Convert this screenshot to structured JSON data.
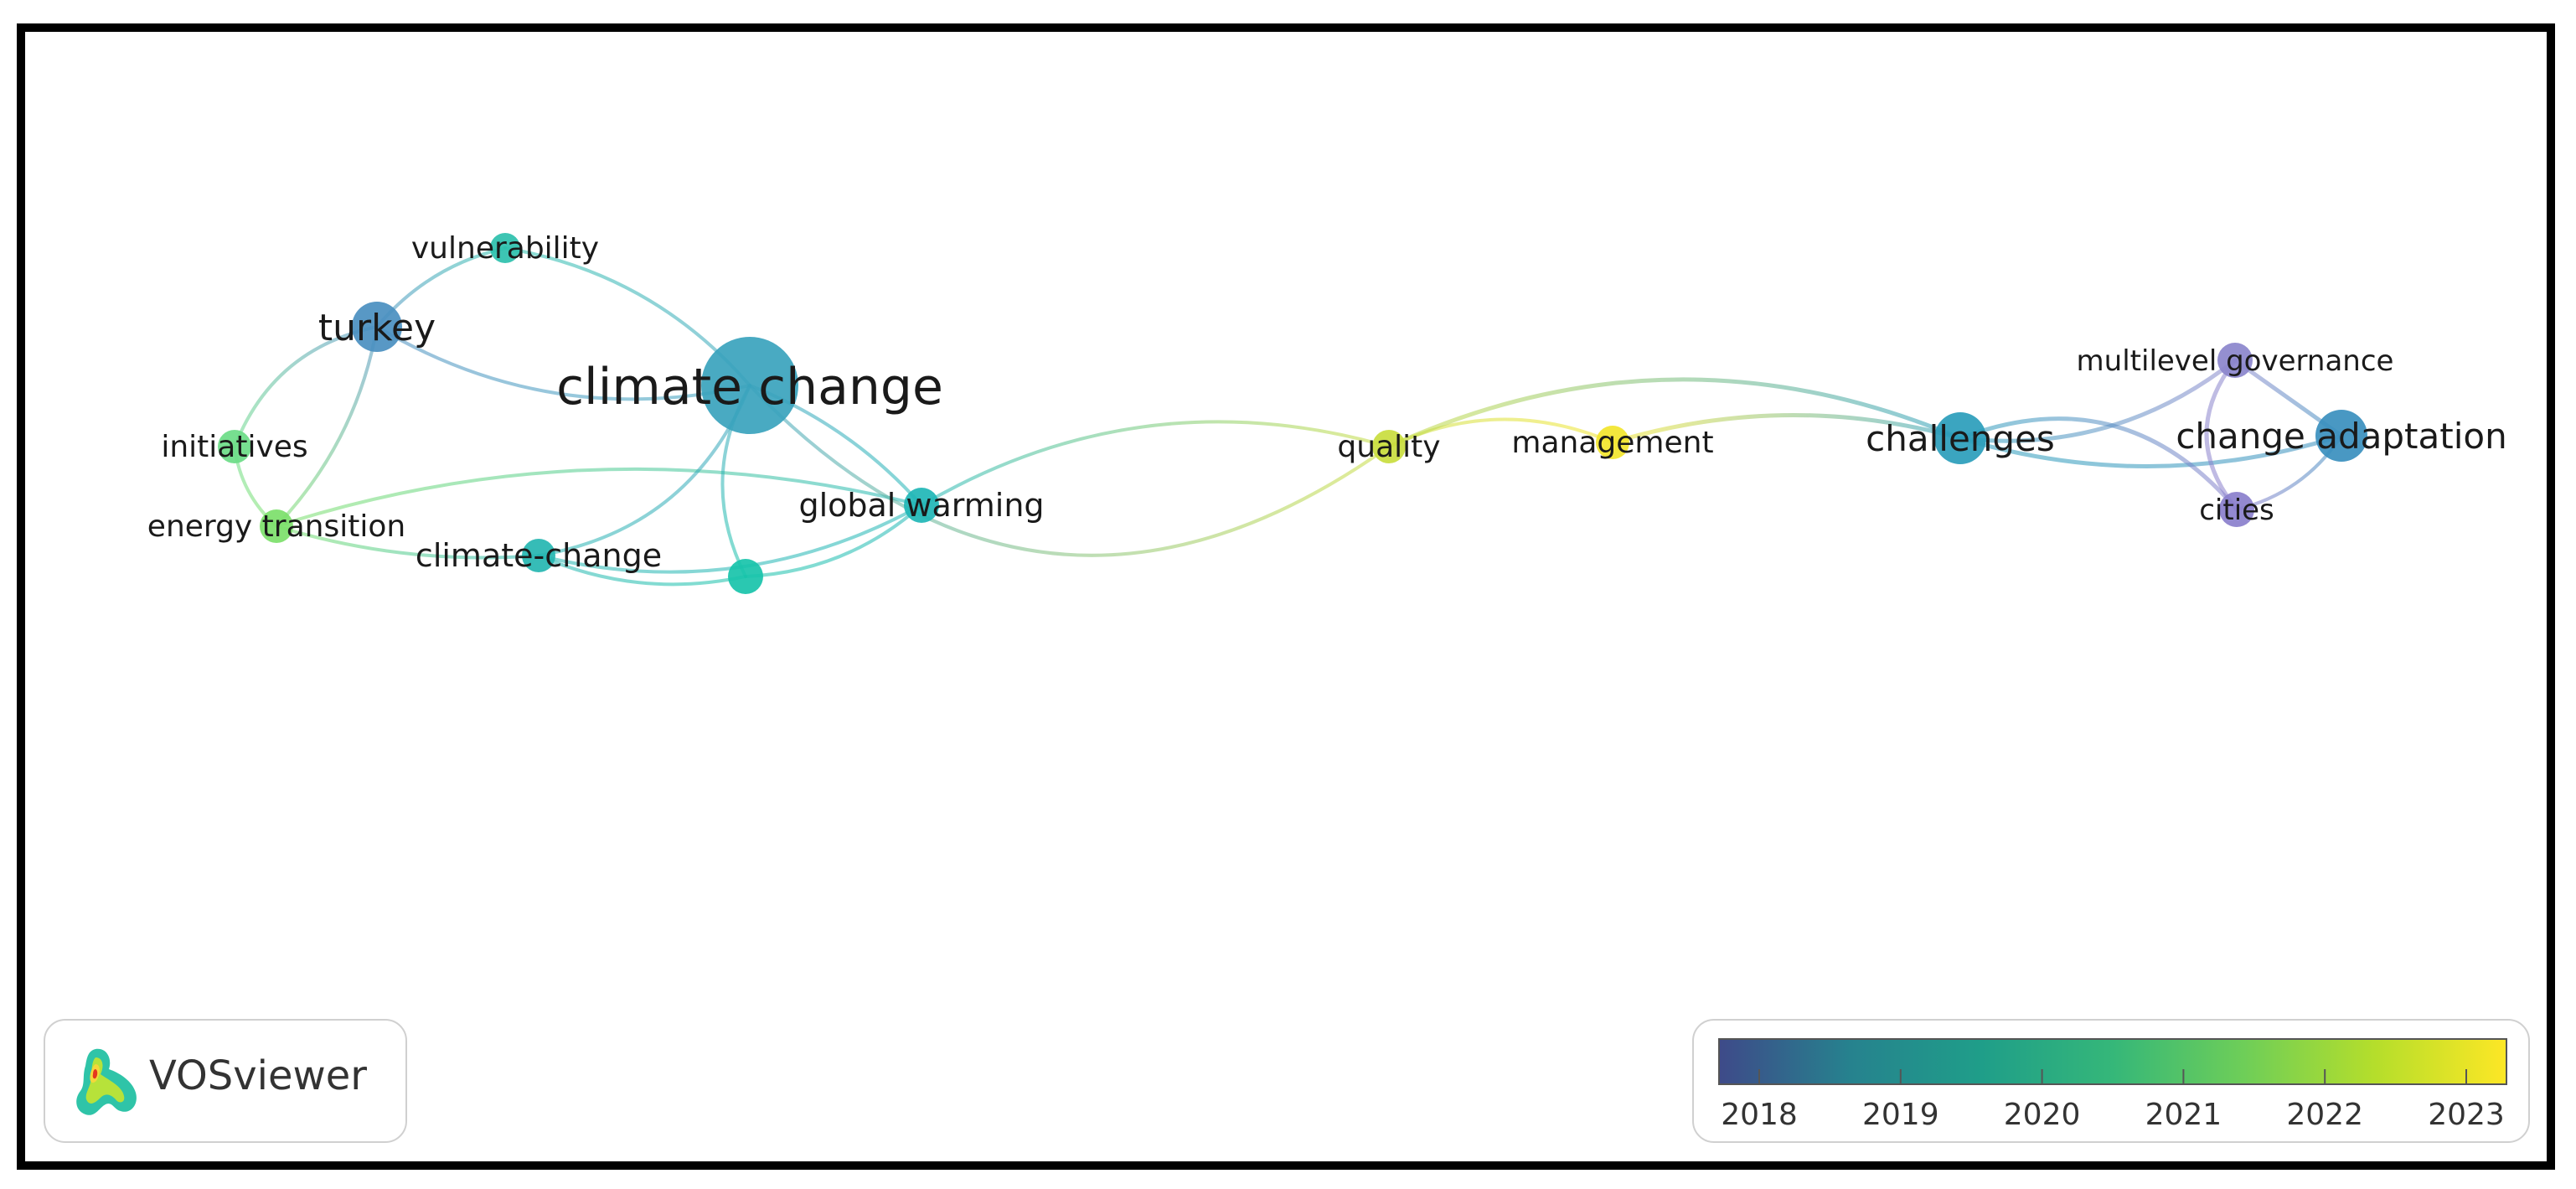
{
  "nodes": [
    {
      "id": "vulnerability",
      "label": "vulnerability",
      "color": "#2cc0ad"
    },
    {
      "id": "turkey",
      "label": "turkey",
      "color": "#4a8fc0"
    },
    {
      "id": "climate-change-main",
      "label": "climate change",
      "color": "#3aa3bd"
    },
    {
      "id": "initiatives",
      "label": "initiatives",
      "color": "#6bdc87"
    },
    {
      "id": "energy-transition",
      "label": "energy transition",
      "color": "#7ce06a"
    },
    {
      "id": "climate-change-hyphen",
      "label": "climate-change",
      "color": "#25b6b1"
    },
    {
      "id": "unlabeled",
      "label": "",
      "color": "#18c3aa"
    },
    {
      "id": "global-warming",
      "label": "global warming",
      "color": "#20b6b6"
    },
    {
      "id": "quality",
      "label": "quality",
      "color": "#c9dd3e"
    },
    {
      "id": "management",
      "label": "management",
      "color": "#f2e52c"
    },
    {
      "id": "challenges",
      "label": "challenges",
      "color": "#2a9dbb"
    },
    {
      "id": "multilevel-governance",
      "label": "multilevel governance",
      "color": "#8b86cc"
    },
    {
      "id": "change-adaptation",
      "label": "change adaptation",
      "color": "#3a8fbe"
    },
    {
      "id": "cities",
      "label": "cities",
      "color": "#8a7fcc"
    }
  ],
  "edges": [
    [
      "vulnerability",
      "turkey"
    ],
    [
      "vulnerability",
      "climate-change-main"
    ],
    [
      "turkey",
      "climate-change-main"
    ],
    [
      "turkey",
      "initiatives"
    ],
    [
      "turkey",
      "energy-transition"
    ],
    [
      "initiatives",
      "energy-transition"
    ],
    [
      "energy-transition",
      "climate-change-hyphen"
    ],
    [
      "energy-transition",
      "global-warming"
    ],
    [
      "climate-change-main",
      "climate-change-hyphen"
    ],
    [
      "climate-change-main",
      "global-warming"
    ],
    [
      "climate-change-main",
      "unlabeled"
    ],
    [
      "climate-change-main",
      "quality"
    ],
    [
      "climate-change-hyphen",
      "global-warming"
    ],
    [
      "climate-change-hyphen",
      "unlabeled"
    ],
    [
      "unlabeled",
      "global-warming"
    ],
    [
      "global-warming",
      "quality"
    ],
    [
      "quality",
      "management"
    ],
    [
      "quality",
      "challenges"
    ],
    [
      "management",
      "challenges"
    ],
    [
      "challenges",
      "multilevel-governance"
    ],
    [
      "challenges",
      "change-adaptation"
    ],
    [
      "challenges",
      "cities"
    ],
    [
      "multilevel-governance",
      "change-adaptation"
    ],
    [
      "multilevel-governance",
      "cities"
    ],
    [
      "cities",
      "change-adaptation"
    ]
  ],
  "branding": {
    "app_name": "VOSviewer"
  },
  "legend": {
    "type": "color-scale",
    "ticks": [
      "2018",
      "2019",
      "2020",
      "2021",
      "2022",
      "2023"
    ],
    "gradient_stops": [
      "#3e4a89",
      "#26828e",
      "#1f9e89",
      "#35b779",
      "#6ece58",
      "#b5de2b",
      "#fde725"
    ]
  }
}
